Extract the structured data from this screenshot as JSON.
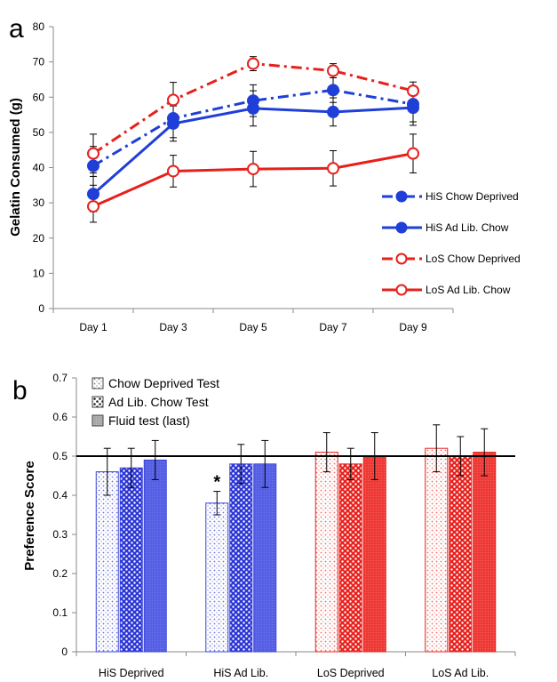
{
  "chart_data": [
    {
      "panel_label": "a",
      "type": "line",
      "ylabel": "Gelatin Consumed (g)",
      "categories": [
        "Day 1",
        "Day 3",
        "Day 5",
        "Day 7",
        "Day 9"
      ],
      "ylim": [
        0,
        80
      ],
      "yticks": [
        0,
        10,
        20,
        30,
        40,
        50,
        60,
        70,
        80
      ],
      "legend_position": "right",
      "series": [
        {
          "name": "HiS Chow Deprived",
          "color": "#1f3fd8",
          "dash": "dash-dot",
          "marker": "filled",
          "values": [
            40.5,
            54.0,
            59.0,
            62.0,
            58.0
          ],
          "errors": [
            5.5,
            5.5,
            4.5,
            3.5,
            5.0
          ]
        },
        {
          "name": "HiS Ad Lib. Chow",
          "color": "#1f3fd8",
          "dash": "solid",
          "marker": "filled",
          "values": [
            32.5,
            52.5,
            56.8,
            55.8,
            57.0
          ],
          "errors": [
            5.0,
            5.0,
            5.0,
            4.0,
            5.0
          ]
        },
        {
          "name": "LoS Chow Deprived",
          "color": "#e8201c",
          "dash": "dash-dot",
          "marker": "open",
          "values": [
            44.0,
            59.2,
            69.5,
            67.5,
            61.8
          ],
          "errors": [
            5.5,
            5.0,
            2.0,
            2.0,
            2.5
          ]
        },
        {
          "name": "LoS Ad Lib. Chow",
          "color": "#e8201c",
          "dash": "solid",
          "marker": "open",
          "values": [
            29.0,
            39.0,
            39.6,
            39.8,
            44.0
          ],
          "errors": [
            4.5,
            4.5,
            5.0,
            5.0,
            5.5
          ]
        }
      ]
    },
    {
      "panel_label": "b",
      "type": "bar",
      "ylabel": "Preference Score",
      "categories": [
        "HiS Deprived",
        "HiS Ad Lib.",
        "LoS Deprived",
        "LoS Ad Lib."
      ],
      "ylim": [
        0,
        0.7
      ],
      "yticks": [
        "0",
        "0.1",
        "0.2",
        "0.3",
        "0.4",
        "0.5",
        "0.6",
        "0.7"
      ],
      "reference_line": 0.5,
      "legend_position": "top-left",
      "significance": {
        "category": "HiS Ad Lib.",
        "series": 0,
        "label": "*"
      },
      "category_colors": [
        "#2b35d6",
        "#2b35d6",
        "#e8201c",
        "#e8201c"
      ],
      "series": [
        {
          "name": "Chow Deprived Test",
          "pattern": "light-dots",
          "values": [
            0.46,
            0.38,
            0.51,
            0.52
          ],
          "errors": [
            0.06,
            0.03,
            0.05,
            0.06
          ]
        },
        {
          "name": "Ad Lib. Chow Test",
          "pattern": "dense-dots",
          "values": [
            0.47,
            0.48,
            0.48,
            0.5
          ],
          "errors": [
            0.05,
            0.05,
            0.04,
            0.05
          ]
        },
        {
          "name": "Fluid test (last)",
          "pattern": "solid",
          "values": [
            0.49,
            0.48,
            0.5,
            0.51
          ],
          "errors": [
            0.05,
            0.06,
            0.06,
            0.06
          ]
        }
      ]
    }
  ]
}
